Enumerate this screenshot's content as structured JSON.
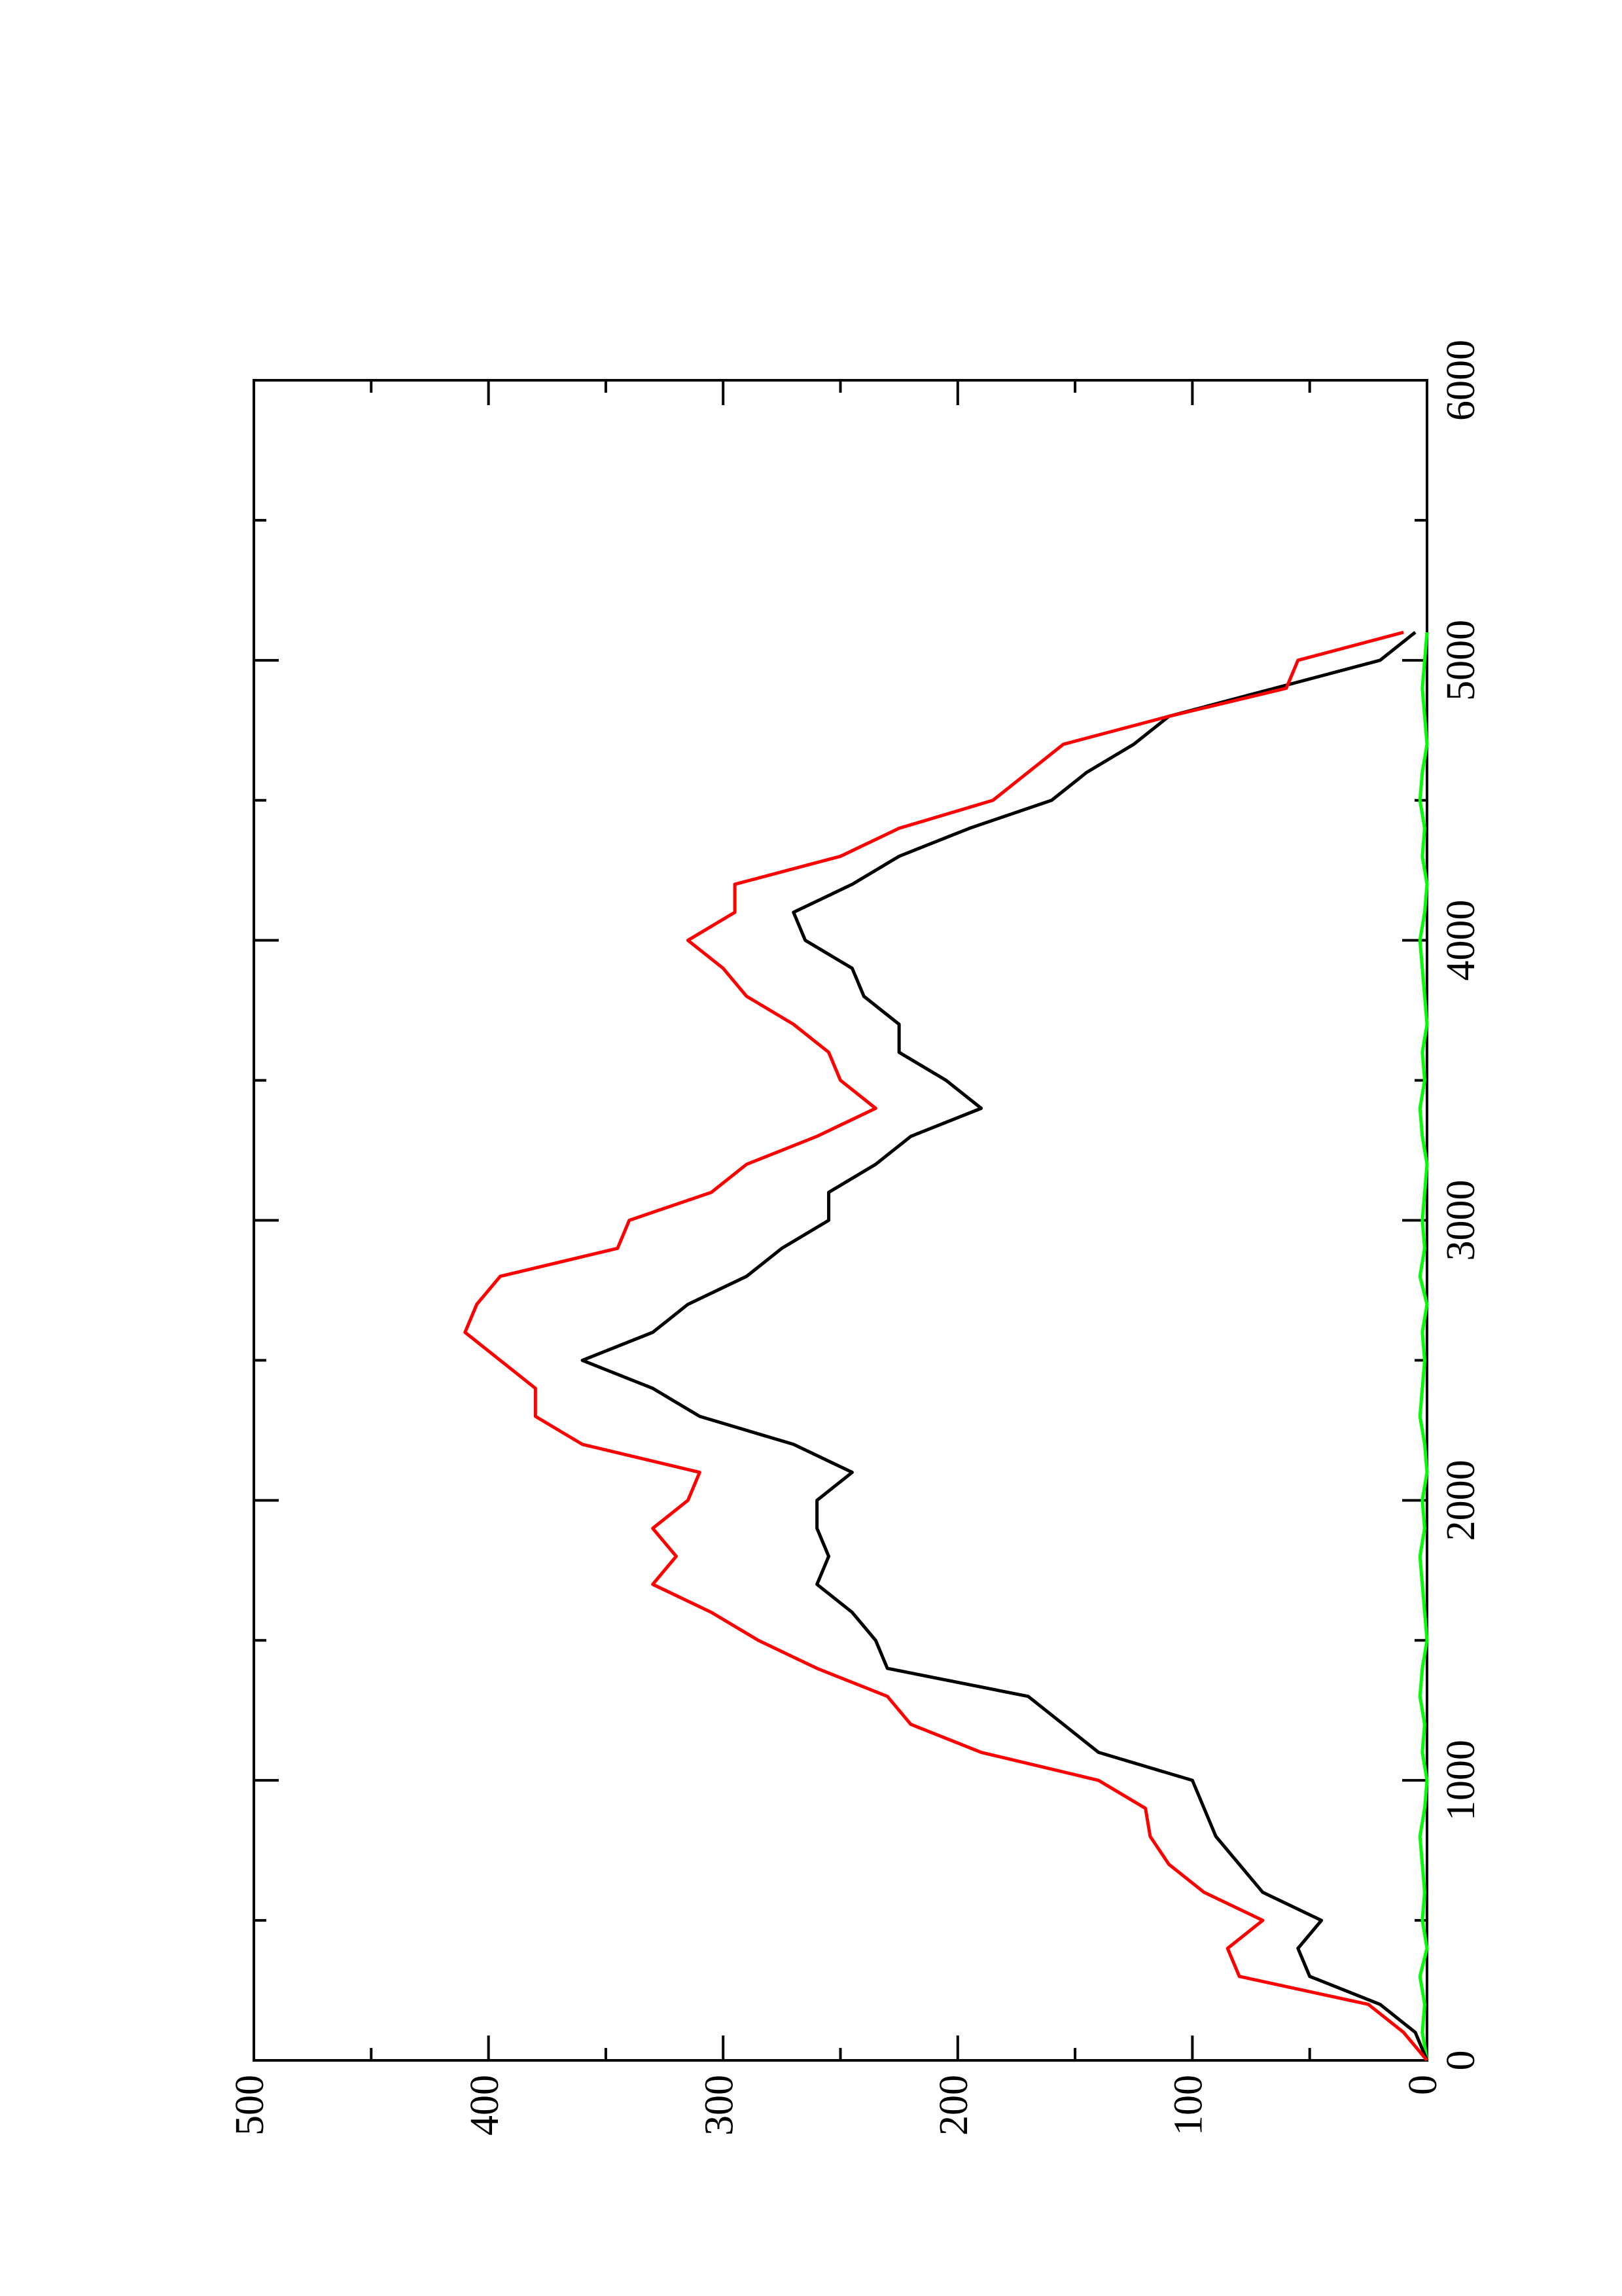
{
  "chart_data": {
    "type": "line",
    "x": [
      0,
      100,
      200,
      300,
      400,
      500,
      600,
      700,
      800,
      900,
      1000,
      1100,
      1200,
      1300,
      1400,
      1500,
      1600,
      1700,
      1800,
      1900,
      2000,
      2100,
      2200,
      2300,
      2400,
      2500,
      2600,
      2700,
      2800,
      2900,
      3000,
      3100,
      3200,
      3300,
      3400,
      3500,
      3600,
      3700,
      3800,
      3900,
      4000,
      4100,
      4200,
      4300,
      4400,
      4500,
      4600,
      4700,
      4800,
      4900,
      5000,
      5100
    ],
    "series": [
      {
        "color": "#000000",
        "values": [
          0,
          5,
          20,
          50,
          55,
          45,
          70,
          80,
          90,
          95,
          100,
          140,
          155,
          170,
          230,
          235,
          245,
          260,
          255,
          260,
          260,
          245,
          270,
          310,
          330,
          360,
          330,
          315,
          290,
          275,
          255,
          255,
          235,
          220,
          190,
          205,
          225,
          225,
          240,
          245,
          265,
          270,
          245,
          225,
          195,
          160,
          145,
          125,
          110,
          65,
          20,
          5
        ]
      },
      {
        "color": "#ff0000",
        "values": [
          0,
          10,
          25,
          80,
          85,
          70,
          95,
          110,
          118,
          120,
          140,
          190,
          220,
          230,
          260,
          285,
          305,
          330,
          320,
          330,
          315,
          310,
          360,
          380,
          380,
          395,
          410,
          405,
          395,
          345,
          340,
          305,
          290,
          260,
          235,
          250,
          255,
          270,
          290,
          300,
          315,
          295,
          295,
          250,
          225,
          185,
          170,
          155,
          110,
          60,
          55,
          10
        ]
      },
      {
        "color": "#00ff00",
        "values": [
          0,
          2,
          1,
          3,
          0,
          2,
          1,
          2,
          3,
          1,
          0,
          2,
          1,
          3,
          2,
          0,
          1,
          2,
          3,
          1,
          2,
          0,
          1,
          3,
          2,
          1,
          2,
          0,
          3,
          1,
          2,
          1,
          0,
          2,
          3,
          1,
          2,
          0,
          1,
          2,
          3,
          1,
          0,
          2,
          1,
          3,
          2,
          0,
          1,
          2,
          1,
          0
        ]
      }
    ],
    "xlim": [
      0,
      6000
    ],
    "xticks": [
      0,
      1000,
      2000,
      3000,
      4000,
      5000,
      6000
    ],
    "ylim": [
      0,
      500
    ],
    "yticks": [
      0,
      100,
      200,
      300,
      400,
      500
    ]
  }
}
